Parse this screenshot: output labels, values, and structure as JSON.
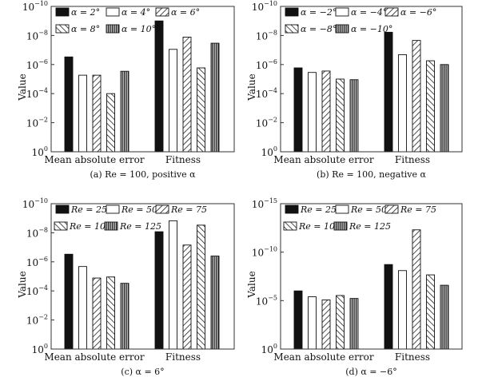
{
  "chart_data": [
    {
      "type": "bar",
      "caption": "(a) Re = 100, positive α",
      "ylabel": "Value",
      "yscale": "log (inverted)",
      "ylim": [
        1,
        1e-10
      ],
      "yticks": [
        {
          "base": "10",
          "exp": "0"
        },
        {
          "base": "10",
          "exp": "−2"
        },
        {
          "base": "10",
          "exp": "−4"
        },
        {
          "base": "10",
          "exp": "−6"
        },
        {
          "base": "10",
          "exp": "−8"
        },
        {
          "base": "10",
          "exp": "−10"
        }
      ],
      "ytick_values": [
        0,
        2,
        4,
        6,
        8,
        10
      ],
      "yexp_max": 10,
      "categories": [
        "Mean absolute error",
        "Fitness"
      ],
      "legend_position": "top",
      "series": [
        {
          "name": "α = 2°",
          "pattern": "solid",
          "values": [
            3e-07,
            1e-09
          ]
        },
        {
          "name": "α = 4°",
          "pattern": "white",
          "values": [
            5.4e-06,
            9e-08
          ]
        },
        {
          "name": "α = 6°",
          "pattern": "hatch-fwd",
          "values": [
            5.4e-06,
            1.3e-08
          ]
        },
        {
          "name": "α = 8°",
          "pattern": "hatch-back",
          "values": [
            0.0001,
            1.7e-06
          ]
        },
        {
          "name": "α = 10°",
          "pattern": "vertical",
          "values": [
            2.9e-06,
            3.4e-08
          ]
        }
      ]
    },
    {
      "type": "bar",
      "caption": "(b) Re = 100, negative α",
      "ylabel": "Value",
      "yscale": "log (inverted)",
      "ylim": [
        1,
        1e-10
      ],
      "yticks": [
        {
          "base": "10",
          "exp": "0"
        },
        {
          "base": "10",
          "exp": "−2"
        },
        {
          "base": "10",
          "exp": "−4"
        },
        {
          "base": "10",
          "exp": "−6"
        },
        {
          "base": "10",
          "exp": "−8"
        },
        {
          "base": "10",
          "exp": "−10"
        }
      ],
      "ytick_values": [
        0,
        2,
        4,
        6,
        8,
        10
      ],
      "yexp_max": 10,
      "categories": [
        "Mean absolute error",
        "Fitness"
      ],
      "legend_position": "top",
      "series": [
        {
          "name": "α = −2°",
          "pattern": "solid",
          "values": [
            1.7e-06,
            6e-09
          ]
        },
        {
          "name": "α = −4°",
          "pattern": "white",
          "values": [
            3.5e-06,
            2.1e-07
          ]
        },
        {
          "name": "α = −6°",
          "pattern": "hatch-fwd",
          "values": [
            2.8e-06,
            2.2e-08
          ]
        },
        {
          "name": "α = −8°",
          "pattern": "hatch-back",
          "values": [
            1e-05,
            5.5e-07
          ]
        },
        {
          "name": "α = −10°",
          "pattern": "vertical",
          "values": [
            1.1e-05,
            1e-06
          ]
        }
      ]
    },
    {
      "type": "bar",
      "caption": "(c) α = 6°",
      "ylabel": "Value",
      "yscale": "log (inverted)",
      "ylim": [
        1,
        1e-10
      ],
      "yticks": [
        {
          "base": "10",
          "exp": "0"
        },
        {
          "base": "10",
          "exp": "−2"
        },
        {
          "base": "10",
          "exp": "−4"
        },
        {
          "base": "10",
          "exp": "−6"
        },
        {
          "base": "10",
          "exp": "−8"
        },
        {
          "base": "10",
          "exp": "−10"
        }
      ],
      "ytick_values": [
        0,
        2,
        4,
        6,
        8,
        10
      ],
      "yexp_max": 10,
      "categories": [
        "Mean absolute error",
        "Fitness"
      ],
      "legend_position": "top",
      "series": [
        {
          "name": "Re = 25",
          "pattern": "solid",
          "values": [
            3e-07,
            8.5e-09
          ]
        },
        {
          "name": "Re = 50",
          "pattern": "white",
          "values": [
            2.1e-06,
            1.5e-09
          ]
        },
        {
          "name": "Re = 75",
          "pattern": "hatch-fwd",
          "values": [
            1.3e-05,
            7e-08
          ]
        },
        {
          "name": "Re = 100",
          "pattern": "hatch-back",
          "values": [
            1.1e-05,
            3e-09
          ]
        },
        {
          "name": "Re = 125",
          "pattern": "vertical",
          "values": [
            3e-05,
            4e-07
          ]
        }
      ]
    },
    {
      "type": "bar",
      "caption": "(d) α = −6°",
      "ylabel": "Value",
      "yscale": "log (inverted)",
      "ylim": [
        1,
        1e-15
      ],
      "yticks": [
        {
          "base": "10",
          "exp": "0"
        },
        {
          "base": "10",
          "exp": "−5"
        },
        {
          "base": "10",
          "exp": "−10"
        },
        {
          "base": "10",
          "exp": "−15"
        }
      ],
      "ytick_values": [
        0,
        5,
        10,
        15
      ],
      "yexp_max": 15,
      "categories": [
        "Mean absolute error",
        "Fitness"
      ],
      "legend_position": "top",
      "series": [
        {
          "name": "Re = 25",
          "pattern": "solid",
          "values": [
            1e-06,
            1.9e-09
          ]
        },
        {
          "name": "Re = 50",
          "pattern": "white",
          "values": [
            4e-06,
            8e-09
          ]
        },
        {
          "name": "Re = 75",
          "pattern": "hatch-fwd",
          "values": [
            8.5e-06,
            5e-13
          ]
        },
        {
          "name": "Re = 100",
          "pattern": "hatch-back",
          "values": [
            3e-06,
            2.2e-08
          ]
        },
        {
          "name": "Re = 125",
          "pattern": "vertical",
          "values": [
            6e-06,
            2.6e-07
          ]
        }
      ]
    }
  ]
}
